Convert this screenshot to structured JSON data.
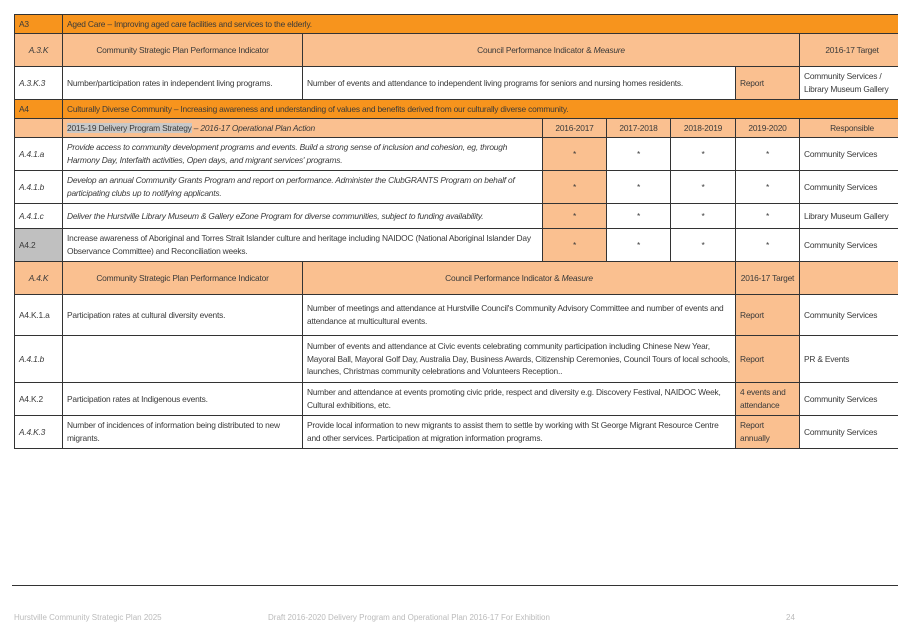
{
  "a3": {
    "code": "A3",
    "title": "Aged Care – Improving aged care facilities and services to the elderly.",
    "kpi_header": {
      "code": "A.3.K",
      "csp": "Community Strategic Plan Performance Indicator",
      "council_plain": "Council Performance Indicator & ",
      "council_italic": "Measure",
      "target": "2016-17 Target",
      "responsible": ""
    },
    "rows": [
      {
        "code": "A.3.K.3",
        "indicator": "Number/participation rates in independent living programs.",
        "measure": "Number of events and attendance to independent living programs for seniors and nursing homes residents.",
        "target": "Report",
        "responsible": "Community Services / Library Museum Gallery"
      }
    ]
  },
  "a4": {
    "code": "A4",
    "title": "Culturally Diverse Community – Increasing awareness and understanding of values and benefits derived from our culturally diverse community.",
    "strategy_header": {
      "strategy": "2015-19 Delivery Program Strategy",
      "action": " – 2016-17 Operational Plan Action",
      "years": [
        "2016-2017",
        "2017-2018",
        "2018-2019",
        "2019-2020"
      ],
      "responsible": "Responsible"
    },
    "actions": [
      {
        "code": "A.4.1.a",
        "text": "Provide access to community development programs and events. Build a strong sense of inclusion and cohesion, eg, through Harmony Day, Interfaith activities, Open days, and migrant services' programs.",
        "marks": [
          "*",
          "*",
          "*",
          "*"
        ],
        "responsible": "Community Services"
      },
      {
        "code": "A.4.1.b",
        "text": "Develop an annual Community Grants Program and report on performance. Administer the ClubGRANTS Program on behalf of participating clubs up to notifying applicants.",
        "marks": [
          "*",
          "*",
          "*",
          "*"
        ],
        "responsible": "Community Services"
      },
      {
        "code": "A.4.1.c",
        "text": "Deliver the Hurstville Library Museum & Gallery eZone Program for diverse communities, subject to funding availability.",
        "marks": [
          "*",
          "*",
          "*",
          "*"
        ],
        "responsible": "Library Museum Gallery"
      },
      {
        "code": "A4.2",
        "text": "Increase awareness of Aboriginal and Torres Strait Islander culture and heritage including NAIDOC (National Aboriginal Islander Day Observance Committee) and Reconciliation weeks.",
        "marks": [
          "*",
          "*",
          "*",
          "*"
        ],
        "responsible": "Community Services"
      }
    ],
    "kpi_header": {
      "code": "A.4.K",
      "csp": "Community Strategic Plan Performance Indicator",
      "council_plain": "Council Performance Indicator & ",
      "council_italic": "Measure",
      "target": "2016-17 Target",
      "responsible": ""
    },
    "kpis": [
      {
        "code": "A4.K.1.a",
        "indicator": "Participation rates at cultural diversity events.",
        "measure": "Number of meetings and attendance at Hurstville Council's Community Advisory Committee and number of events and attendance at multicultural events.",
        "target": "Report",
        "responsible": "Community Services"
      },
      {
        "code": "A.4.1.b",
        "indicator": "",
        "measure": "Number of events and attendance at Civic events celebrating community participation including Chinese New Year, Mayoral Ball, Mayoral Golf Day, Australia Day, Business Awards, Citizenship Ceremonies, Council Tours of local schools, launches, Christmas community celebrations and Volunteers Reception..",
        "target": "Report",
        "responsible": "PR & Events"
      },
      {
        "code": "A4.K.2",
        "indicator": "Participation rates at Indigenous events.",
        "measure": "Number and attendance at events promoting civic pride, respect and diversity e.g. Discovery Festival, NAIDOC Week, Cultural exhibitions, etc.",
        "target": "4 events and attendance",
        "responsible": "Community Services"
      },
      {
        "code": "A.4.K.3",
        "indicator": "Number of incidences of information being distributed to new migrants.",
        "measure": "Provide local information to new migrants to assist them to settle by working with St George Migrant Resource Centre and other services. Participation at migration information programs.",
        "target": "Report annually",
        "responsible": "Community Services"
      }
    ]
  },
  "footer": {
    "left": "Hurstville Community Strategic Plan 2025",
    "center": "Draft 2016-2020 Delivery Program and Operational Plan 2016-17 For Exhibition",
    "page": "24"
  },
  "colors": {
    "section_orange": "#f7941d",
    "header_peach": "#fac090",
    "grey_cell": "#c0c0c0"
  }
}
